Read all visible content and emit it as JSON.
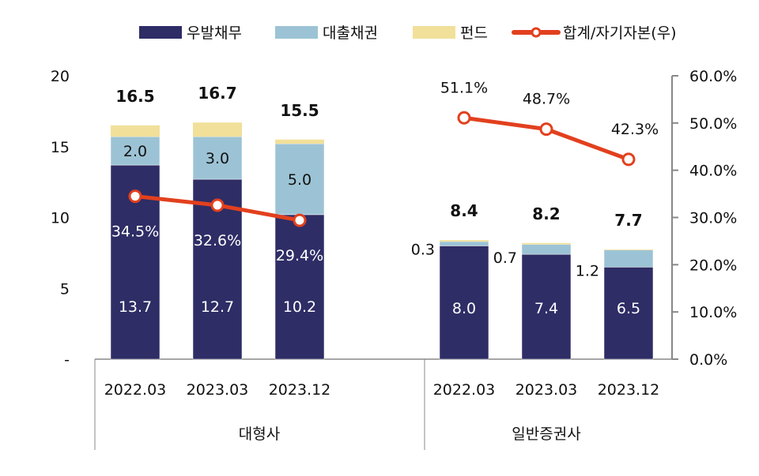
{
  "chart_data": {
    "type": "bar",
    "stacked": true,
    "legend_position": "top",
    "legend": [
      "우발채무",
      "대출채권",
      "펀드",
      "합계/자기자본(우)"
    ],
    "colors": {
      "우발채무": "#2e2d66",
      "대출채권": "#9cc3d5",
      "펀드": "#f1e09a",
      "합계/자기자본(우)": "#e2401e"
    },
    "groups": [
      {
        "name": "대형사",
        "categories": [
          "2022.03",
          "2023.03",
          "2023.12"
        ],
        "우발채무": [
          13.7,
          12.7,
          10.2
        ],
        "대출채권": [
          2.0,
          3.0,
          5.0
        ],
        "펀드": [
          0.8,
          1.0,
          0.3
        ],
        "totals": [
          "16.5",
          "16.7",
          "15.5"
        ],
        "ratio": [
          34.5,
          32.6,
          29.4
        ],
        "ratio_labels": [
          "34.5%",
          "32.6%",
          "29.4%"
        ],
        "loan_labels": [
          "2.0",
          "3.0",
          "5.0"
        ],
        "contingent_labels": [
          "13.7",
          "12.7",
          "10.2"
        ]
      },
      {
        "name": "일반증권사",
        "categories": [
          "2022.03",
          "2023.03",
          "2023.12"
        ],
        "우발채무": [
          8.0,
          7.4,
          6.5
        ],
        "대출채권": [
          0.3,
          0.7,
          1.2
        ],
        "펀드": [
          0.1,
          0.1,
          0.05
        ],
        "totals": [
          "8.4",
          "8.2",
          "7.7"
        ],
        "ratio": [
          51.1,
          48.7,
          42.3
        ],
        "ratio_labels": [
          "51.1%",
          "48.7%",
          "42.3%"
        ],
        "loan_labels": [
          "0.3",
          "0.7",
          "1.2"
        ],
        "contingent_labels": [
          "8.0",
          "7.4",
          "6.5"
        ]
      }
    ],
    "y_left": {
      "range": [
        0,
        20
      ],
      "ticks": [
        "-",
        "5",
        "10",
        "15",
        "20"
      ]
    },
    "y_right": {
      "range": [
        0,
        60
      ],
      "ticks": [
        "0.0%",
        "10.0%",
        "20.0%",
        "30.0%",
        "40.0%",
        "50.0%",
        "60.0%"
      ]
    },
    "grid": false
  }
}
